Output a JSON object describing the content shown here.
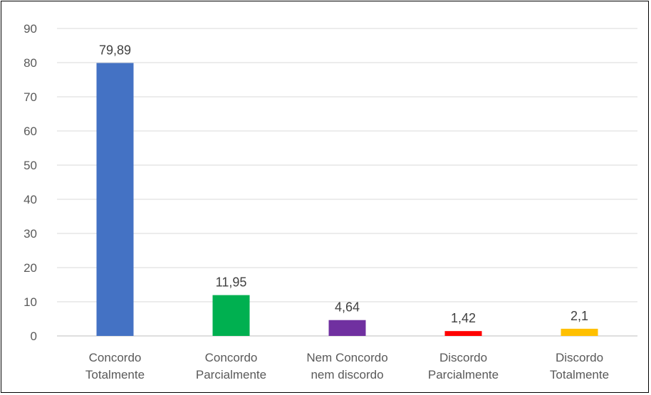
{
  "chart_data": {
    "type": "bar",
    "categories": [
      [
        "Concordo",
        "Totalmente"
      ],
      [
        "Concordo",
        "Parcialmente"
      ],
      [
        "Nem Concordo",
        "nem discordo"
      ],
      [
        "Discordo",
        "Parcialmente"
      ],
      [
        "Discordo",
        "Totalmente"
      ]
    ],
    "values": [
      79.89,
      11.95,
      4.64,
      1.42,
      2.1
    ],
    "data_labels": [
      "79,89",
      "11,95",
      "4,64",
      "1,42",
      "2,1"
    ],
    "colors": [
      "#4472c4",
      "#00b050",
      "#7030a0",
      "#ff0000",
      "#ffc000"
    ],
    "ylim": [
      0,
      90
    ],
    "yticks": [
      0,
      10,
      20,
      30,
      40,
      50,
      60,
      70,
      80,
      90
    ],
    "grid": true,
    "legend": "none"
  }
}
